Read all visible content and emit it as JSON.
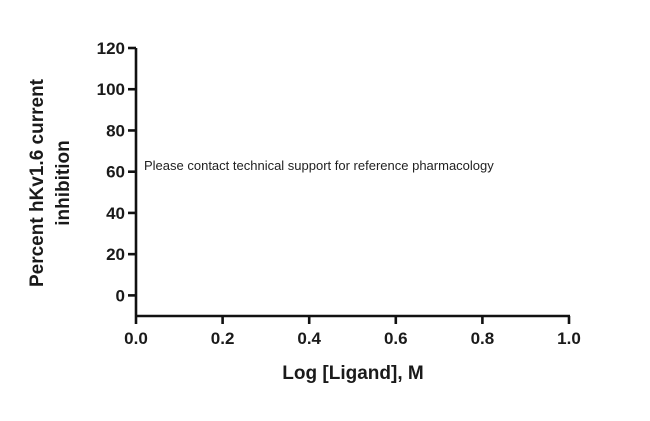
{
  "chart_data": {
    "type": "scatter",
    "title": "",
    "xlabel": "Log [Ligand], M",
    "ylabel_lines": [
      "Percent hKv1.6 current",
      "inhibition"
    ],
    "xlim": [
      0.0,
      1.0
    ],
    "ylim": [
      -10,
      120
    ],
    "x_ticks": [
      0.0,
      0.2,
      0.4,
      0.6,
      0.8,
      1.0
    ],
    "x_tick_labels": [
      "0.0",
      "0.2",
      "0.4",
      "0.6",
      "0.8",
      "1.0"
    ],
    "y_ticks": [
      0,
      20,
      40,
      60,
      80,
      100,
      120
    ],
    "y_tick_labels": [
      "0",
      "20",
      "40",
      "60",
      "80",
      "100",
      "120"
    ],
    "series": [],
    "annotation": "Please contact technical support for reference pharmacology",
    "grid": false,
    "legend": "none"
  }
}
